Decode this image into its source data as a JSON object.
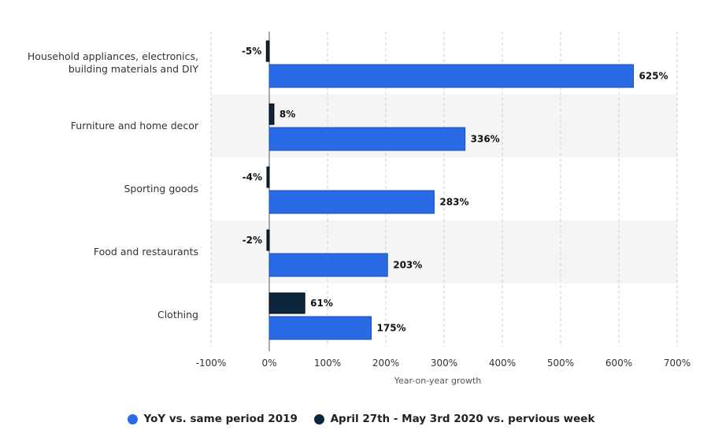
{
  "chart_data": {
    "type": "bar",
    "orientation": "horizontal",
    "categories": [
      "Household appliances, electronics, building materials and DIY",
      "Furniture and home decor",
      "Sporting goods",
      "Food and restaurants",
      "Clothing"
    ],
    "series": [
      {
        "name": "April 27th - May 3rd 2020 vs. pervious week",
        "color": "#0d2640",
        "values": [
          -5,
          8,
          -4,
          -2,
          61
        ],
        "labels": [
          "-5%",
          "8%",
          "-4%",
          "-2%",
          "61%"
        ]
      },
      {
        "name": "YoY vs. same period 2019",
        "color": "#2a6ae4",
        "values": [
          625,
          336,
          283,
          203,
          175
        ],
        "labels": [
          "625%",
          "336%",
          "283%",
          "203%",
          "175%"
        ]
      }
    ],
    "xlabel": "Year-on-year growth",
    "xlim": [
      -100,
      700
    ],
    "xticks": [
      -100,
      0,
      100,
      200,
      300,
      400,
      500,
      600,
      700
    ],
    "xtick_labels": [
      "-100%",
      "0%",
      "100%",
      "200%",
      "300%",
      "400%",
      "500%",
      "600%",
      "700%"
    ],
    "grid": true,
    "legend_position": "bottom"
  },
  "legend": [
    {
      "label": "YoY vs. same period 2019",
      "color": "#2a6ae4"
    },
    {
      "label": "April 27th - May 3rd 2020 vs. pervious week",
      "color": "#0d2640"
    }
  ]
}
